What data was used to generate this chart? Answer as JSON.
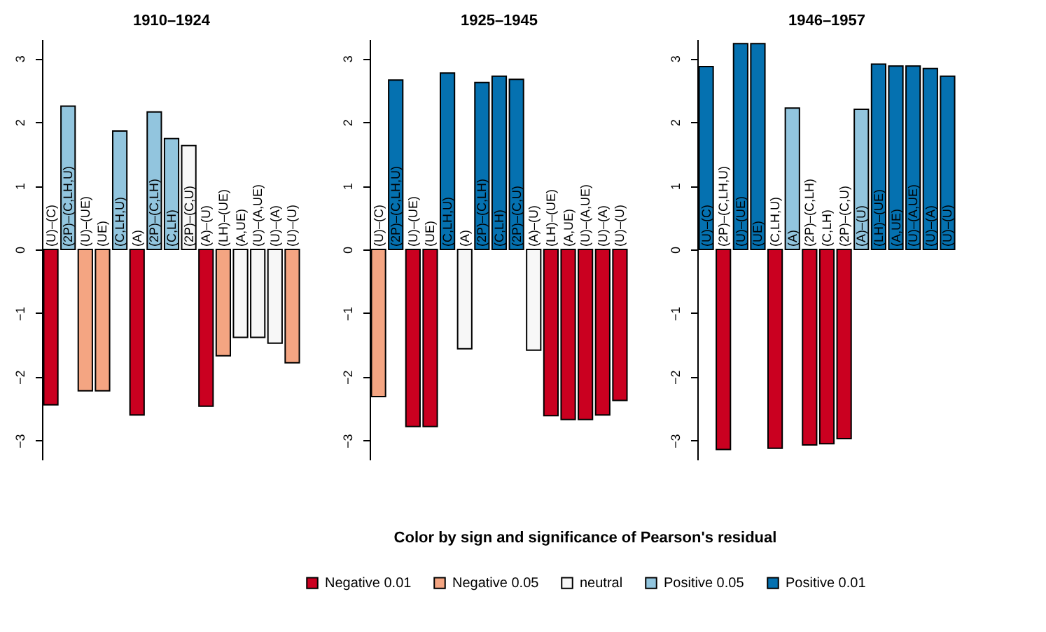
{
  "chart_data": [
    {
      "type": "bar",
      "title": "1910–1924",
      "legend": "bottom",
      "legend_title": "Color by sign and significance of Pearson's residual",
      "categories": [
        "(U)–(C)",
        "(2P)–(C,LH,U)",
        "(U)–(UE)",
        "(UE)",
        "(C,LH,U)",
        "(A)",
        "(2P)–(C,LH)",
        "(C,LH)",
        "(2P)–(C,U)",
        "(A)–(U)",
        "(LH)–(UE)",
        "(A,UE)",
        "(U)–(A,UE)",
        "(U)–(A)",
        "(U)–(U)"
      ],
      "ylim": [
        -3.3,
        3.3
      ],
      "yticks": [
        -3,
        -2,
        -1,
        0,
        1,
        2,
        3
      ],
      "series": [
        {
          "name": "Negative 0.01",
          "color": "#ca0020",
          "values": [
            -2.44,
            null,
            null,
            null,
            null,
            -2.6,
            null,
            null,
            null,
            -2.46,
            null,
            null,
            null,
            null,
            null
          ]
        },
        {
          "name": "Negative 0.05",
          "color": "#f4a582",
          "values": [
            null,
            null,
            -2.22,
            -2.22,
            null,
            null,
            null,
            null,
            null,
            null,
            -1.67,
            null,
            null,
            null,
            -1.78
          ]
        },
        {
          "name": "neutral",
          "color": "#f7f7f7",
          "values": [
            null,
            null,
            null,
            null,
            null,
            null,
            null,
            null,
            1.63,
            null,
            null,
            -1.38,
            -1.38,
            -1.47,
            null
          ]
        },
        {
          "name": "Positive 0.05",
          "color": "#92c5de",
          "values": [
            null,
            2.25,
            null,
            null,
            1.86,
            null,
            2.16,
            1.74,
            null,
            null,
            null,
            null,
            null,
            null,
            null
          ]
        },
        {
          "name": "Positive 0.01",
          "color": "#0571b0",
          "values": [
            null,
            null,
            null,
            null,
            null,
            null,
            null,
            null,
            null,
            null,
            null,
            null,
            null,
            null,
            null
          ]
        }
      ]
    },
    {
      "type": "bar",
      "title": "1925–1945",
      "categories": [
        "(U)–(C)",
        "(2P)–(C,LH,U)",
        "(U)–(UE)",
        "(UE)",
        "(C,LH,U)",
        "(A)",
        "(2P)–(C,LH)",
        "(C,LH)",
        "(2P)–(C,U)",
        "(A)–(U)",
        "(LH)–(UE)",
        "(A,UE)",
        "(U)–(A,UE)",
        "(U)–(A)",
        "(U)–(U)"
      ],
      "ylim": [
        -3.3,
        3.3
      ],
      "yticks": [
        -3,
        -2,
        -1,
        0,
        1,
        2,
        3
      ],
      "series": [
        {
          "color": "#ca0020",
          "values": [
            null,
            null,
            -2.78,
            -2.78,
            null,
            null,
            null,
            null,
            null,
            null,
            -2.61,
            -2.67,
            -2.67,
            -2.6,
            -2.37
          ]
        },
        {
          "color": "#f4a582",
          "values": [
            -2.31,
            null,
            null,
            null,
            null,
            null,
            null,
            null,
            null,
            null,
            null,
            null,
            null,
            null,
            null
          ]
        },
        {
          "color": "#f7f7f7",
          "values": [
            null,
            null,
            null,
            null,
            null,
            -1.56,
            null,
            null,
            null,
            -1.58,
            null,
            null,
            null,
            null,
            null
          ]
        },
        {
          "color": "#92c5de",
          "values": [
            null,
            null,
            null,
            null,
            null,
            null,
            null,
            null,
            null,
            null,
            null,
            null,
            null,
            null,
            null
          ]
        },
        {
          "color": "#0571b0",
          "values": [
            null,
            2.66,
            null,
            null,
            2.77,
            null,
            2.62,
            2.72,
            2.67,
            null,
            null,
            null,
            null,
            null,
            null
          ]
        }
      ]
    },
    {
      "type": "bar",
      "title": "1946–1957",
      "categories": [
        "(U)–(C)",
        "(2P)–(C,LH,U)",
        "(U)–(UE)",
        "(UE)",
        "(C,LH,U)",
        "(A)",
        "(2P)–(C,LH)",
        "(C,LH)",
        "(2P)–(C,U)",
        "(A)–(U)",
        "(LH)–(UE)",
        "(A,UE)",
        "(U)–(A,UE)",
        "(U)–(A)",
        "(U)–(U)"
      ],
      "ylim": [
        -3.3,
        3.3
      ],
      "yticks": [
        -3,
        -2,
        -1,
        0,
        1,
        2,
        3
      ],
      "series": [
        {
          "color": "#ca0020",
          "values": [
            null,
            -3.14,
            null,
            null,
            -3.12,
            null,
            -3.07,
            -3.05,
            -2.97,
            null,
            null,
            null,
            null,
            null,
            null
          ]
        },
        {
          "color": "#f4a582",
          "values": [
            null,
            null,
            null,
            null,
            null,
            null,
            null,
            null,
            null,
            null,
            null,
            null,
            null,
            null,
            null
          ]
        },
        {
          "color": "#f7f7f7",
          "values": [
            null,
            null,
            null,
            null,
            null,
            null,
            null,
            null,
            null,
            null,
            null,
            null,
            null,
            null,
            null
          ]
        },
        {
          "color": "#92c5de",
          "values": [
            null,
            null,
            null,
            null,
            null,
            2.22,
            null,
            null,
            null,
            2.2,
            null,
            null,
            null,
            null,
            null
          ]
        },
        {
          "color": "#0571b0",
          "values": [
            2.87,
            null,
            3.23,
            3.23,
            null,
            null,
            null,
            null,
            null,
            null,
            2.91,
            2.88,
            2.88,
            2.84,
            2.72
          ]
        }
      ]
    }
  ]
}
